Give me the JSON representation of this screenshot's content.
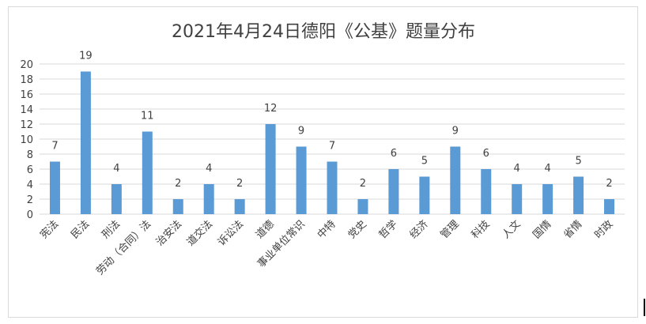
{
  "chart_data": {
    "type": "bar",
    "title": "2021年4月24日德阳《公基》题量分布",
    "categories": [
      "宪法",
      "民法",
      "刑法",
      "劳动（合同）法",
      "治安法",
      "道交法",
      "诉讼法",
      "道德",
      "事业单位常识",
      "中特",
      "党史",
      "哲学",
      "经济",
      "管理",
      "科技",
      "人文",
      "国情",
      "省情",
      "时政"
    ],
    "values": [
      7,
      19,
      4,
      11,
      2,
      4,
      2,
      12,
      9,
      7,
      2,
      6,
      5,
      9,
      6,
      4,
      4,
      5,
      2
    ],
    "ylim": [
      0,
      20
    ],
    "yticks": [
      0,
      2,
      4,
      6,
      8,
      10,
      12,
      14,
      16,
      18,
      20
    ],
    "grid": true,
    "legend": "none",
    "colors": {
      "bar": "#5b9bd5",
      "grid": "#d9d9d9",
      "text": "#404040"
    }
  }
}
